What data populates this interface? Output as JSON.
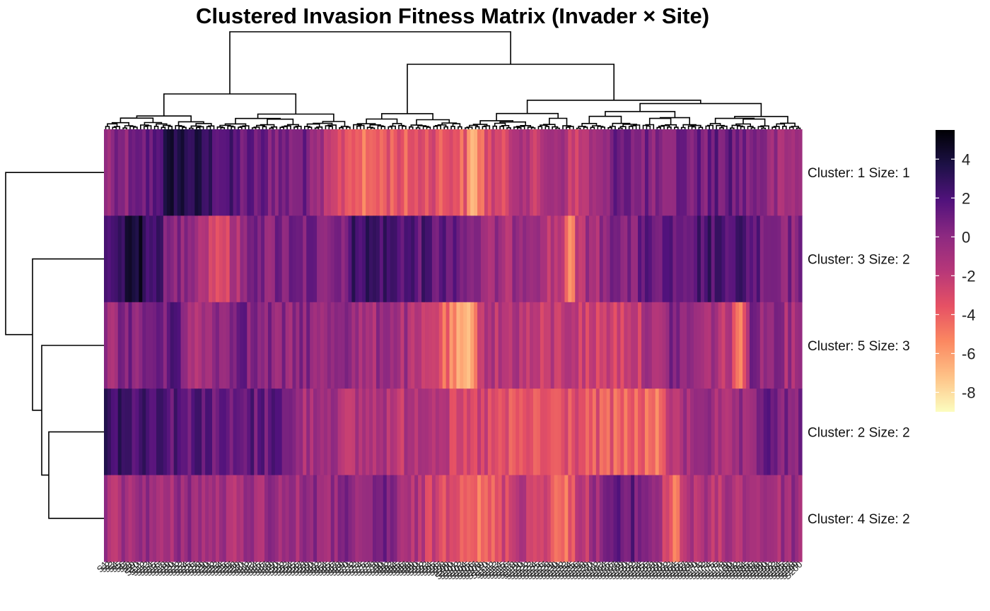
{
  "chart_data": {
    "type": "heatmap",
    "title": "Clustered Invasion Fitness Matrix (Invader × Site)",
    "rows": [
      "Cluster: 1 Size: 1",
      "Cluster: 3 Size: 2",
      "Cluster: 5 Size: 3",
      "Cluster: 2 Size: 2",
      "Cluster: 4 Size: 2"
    ],
    "n_columns": 200,
    "color_scale": {
      "palette": "magma (reversed)",
      "min": -9,
      "max": 5.5,
      "ticks": [
        4,
        2,
        0,
        -2,
        -4,
        -6,
        -8
      ],
      "stops": [
        "#fcfdbf",
        "#fec287",
        "#fb8861",
        "#e65164",
        "#b73779",
        "#8c2981",
        "#51127c",
        "#1d1147",
        "#000004"
      ]
    },
    "row_profile_anchors": [
      [
        [
          0,
          -0.5
        ],
        [
          0.05,
          0.5
        ],
        [
          0.08,
          2.5
        ],
        [
          0.1,
          4
        ],
        [
          0.2,
          1
        ],
        [
          0.3,
          0.5
        ],
        [
          0.355,
          -4.5
        ],
        [
          0.45,
          -3.5
        ],
        [
          0.52,
          -4
        ],
        [
          0.53,
          -7
        ],
        [
          0.55,
          -3
        ],
        [
          0.65,
          -1
        ],
        [
          0.68,
          -2.5
        ],
        [
          0.72,
          0.5
        ],
        [
          0.85,
          0.8
        ],
        [
          0.9,
          1
        ],
        [
          1,
          -1
        ]
      ],
      [
        [
          0,
          2
        ],
        [
          0.05,
          4
        ],
        [
          0.08,
          1.5
        ],
        [
          0.15,
          -2.5
        ],
        [
          0.16,
          -4
        ],
        [
          0.2,
          0
        ],
        [
          0.35,
          1
        ],
        [
          0.36,
          3
        ],
        [
          0.47,
          1.5
        ],
        [
          0.53,
          0
        ],
        [
          0.66,
          -2
        ],
        [
          0.665,
          -7
        ],
        [
          0.68,
          -1.5
        ],
        [
          0.79,
          1.5
        ],
        [
          0.9,
          2.5
        ],
        [
          1,
          0
        ]
      ],
      [
        [
          0,
          -0.5
        ],
        [
          0.1,
          1.5
        ],
        [
          0.13,
          -1.5
        ],
        [
          0.2,
          0.5
        ],
        [
          0.35,
          -0.5
        ],
        [
          0.45,
          -1
        ],
        [
          0.52,
          -6.5
        ],
        [
          0.55,
          -1.5
        ],
        [
          0.65,
          -2
        ],
        [
          0.75,
          -3
        ],
        [
          0.82,
          0.5
        ],
        [
          0.9,
          -2
        ],
        [
          0.91,
          -5.5
        ],
        [
          0.93,
          0
        ],
        [
          1,
          -1
        ]
      ],
      [
        [
          0,
          2.5
        ],
        [
          0.1,
          1.5
        ],
        [
          0.2,
          1.5
        ],
        [
          0.27,
          1
        ],
        [
          0.28,
          -1
        ],
        [
          0.4,
          -1.5
        ],
        [
          0.53,
          -2.5
        ],
        [
          0.6,
          -3.5
        ],
        [
          0.7,
          -3.5
        ],
        [
          0.8,
          -4.5
        ],
        [
          0.82,
          -1
        ],
        [
          0.9,
          -0.5
        ],
        [
          0.95,
          1
        ],
        [
          1,
          0.5
        ]
      ],
      [
        [
          0,
          -1
        ],
        [
          0.1,
          -0.5
        ],
        [
          0.2,
          -1
        ],
        [
          0.35,
          0
        ],
        [
          0.4,
          1
        ],
        [
          0.52,
          -5
        ],
        [
          0.6,
          -2
        ],
        [
          0.66,
          -4.5
        ],
        [
          0.72,
          0.5
        ],
        [
          0.74,
          2
        ],
        [
          0.8,
          -1
        ],
        [
          0.82,
          -5.5
        ],
        [
          0.84,
          -1
        ],
        [
          0.9,
          -1.5
        ],
        [
          1,
          -0.5
        ]
      ]
    ]
  }
}
